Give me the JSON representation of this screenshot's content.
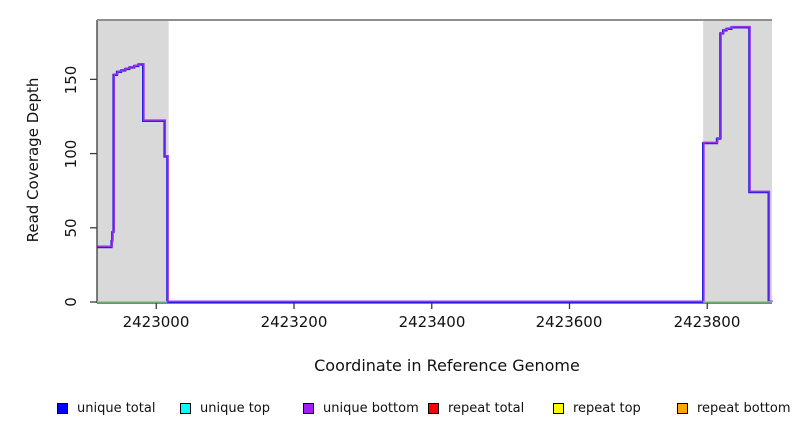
{
  "chart_data": {
    "type": "line",
    "subtype": "step-coverage",
    "title": "",
    "xlabel": "Coordinate in Reference Genome",
    "ylabel": "Read Coverage Depth",
    "x_ticks": [
      "2423000",
      "2423200",
      "2423400",
      "2423600",
      "2423800"
    ],
    "x_tick_values": [
      2423000,
      2423200,
      2423400,
      2423600,
      2423800
    ],
    "y_ticks": [
      "0",
      "50",
      "100",
      "150"
    ],
    "y_tick_values": [
      0,
      50,
      100,
      150
    ],
    "xlim": [
      2422914,
      2423894
    ],
    "ylim": [
      0,
      190
    ],
    "grid": false,
    "legend_position": "bottom",
    "background_color": "#ffffff",
    "shaded_regions": [
      {
        "x0": 2422914,
        "x1": 2423018,
        "color": "#d9d9d9",
        "meaning": "repeat region"
      },
      {
        "x0": 2423794,
        "x1": 2423894,
        "color": "#d9d9d9",
        "meaning": "repeat region"
      }
    ],
    "top_reference_line": {
      "y": 190,
      "color": "#8f8f8f"
    },
    "series": [
      {
        "name": "unique coverage (total / top / bottom overlaid)",
        "type": "step",
        "colors": [
          "#2a1fe0",
          "#9a33e8"
        ],
        "points": [
          [
            2422914,
            37
          ],
          [
            2422935,
            37
          ],
          [
            2422935,
            41
          ],
          [
            2422936,
            41
          ],
          [
            2422936,
            47
          ],
          [
            2422938,
            47
          ],
          [
            2422938,
            153
          ],
          [
            2422943,
            153
          ],
          [
            2422943,
            155
          ],
          [
            2422949,
            155
          ],
          [
            2422949,
            156
          ],
          [
            2422955,
            156
          ],
          [
            2422955,
            157
          ],
          [
            2422961,
            157
          ],
          [
            2422961,
            158
          ],
          [
            2422968,
            158
          ],
          [
            2422968,
            159
          ],
          [
            2422974,
            159
          ],
          [
            2422974,
            160
          ],
          [
            2422981,
            160
          ],
          [
            2422981,
            122
          ],
          [
            2423012,
            122
          ],
          [
            2423012,
            98
          ],
          [
            2423016,
            98
          ],
          [
            2423016,
            0
          ],
          [
            2423794,
            0
          ],
          [
            2423794,
            107
          ],
          [
            2423814,
            107
          ],
          [
            2423814,
            110
          ],
          [
            2423819,
            110
          ],
          [
            2423819,
            181
          ],
          [
            2423823,
            181
          ],
          [
            2423823,
            183
          ],
          [
            2423828,
            183
          ],
          [
            2423828,
            184
          ],
          [
            2423835,
            184
          ],
          [
            2423835,
            185
          ],
          [
            2423861,
            185
          ],
          [
            2423861,
            74
          ],
          [
            2423889,
            74
          ],
          [
            2423889,
            0
          ],
          [
            2423894,
            0
          ]
        ]
      },
      {
        "name": "repeat coverage baseline (zero depth)",
        "type": "segments",
        "color": "#84c984",
        "segments": [
          [
            2422914,
            2423016
          ],
          [
            2423794,
            2423894
          ]
        ]
      }
    ]
  },
  "legend": {
    "items": [
      {
        "label": "unique total",
        "color": "#0000ff"
      },
      {
        "label": "unique top",
        "color": "#00ffff"
      },
      {
        "label": "unique bottom",
        "color": "#a020f0"
      },
      {
        "label": "repeat total",
        "color": "#ff0000"
      },
      {
        "label": "repeat top",
        "color": "#ffff00"
      },
      {
        "label": "repeat bottom",
        "color": "#ffa500"
      }
    ]
  }
}
